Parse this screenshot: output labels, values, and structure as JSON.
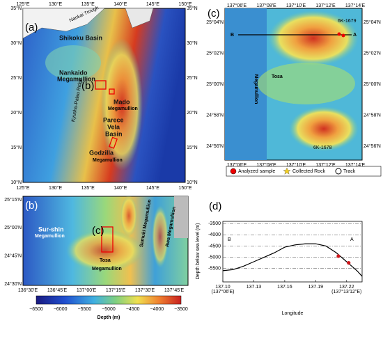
{
  "panel_a": {
    "label": "(a)",
    "lon_ticks": [
      "125°E",
      "130°E",
      "135°E",
      "140°E",
      "145°E",
      "150°E"
    ],
    "lat_ticks": [
      "10°N",
      "15°N",
      "20°N",
      "25°N",
      "30°N",
      "35°N"
    ],
    "features": [
      "Nankai Trough",
      "Shikoku Basin",
      "Nankaido",
      "Megamullion",
      "(b)",
      "Mado",
      "Megamullion",
      "Parece",
      "Vela",
      "Basin",
      "Godzilla",
      "Megamullion",
      "Kyushu-Palau Ridge"
    ]
  },
  "panel_b": {
    "label": "(b)",
    "lon_ticks": [
      "136°30'E",
      "136°45'E",
      "137°00'E",
      "137°15'E",
      "137°30'E",
      "137°45'E"
    ],
    "lat_ticks": [
      "24°30'N",
      "24°45'N",
      "25°00'N",
      "25°15'N"
    ],
    "features": [
      "Sur-shin",
      "Megamullion",
      "(c)",
      "Tosa",
      "Megamullion",
      "Samuki Megamullion",
      "Awa Megamullion"
    ],
    "colorbar": {
      "ticks": [
        "−6500",
        "−6000",
        "−5500",
        "−5000",
        "−4500",
        "−4000",
        "−3500"
      ],
      "label": "Depth (m)"
    }
  },
  "panel_c": {
    "label": "(c)",
    "lon_ticks": [
      "137°06'E",
      "137°08'E",
      "137°10'E",
      "137°12'E",
      "137°14'E"
    ],
    "lat_ticks": [
      "24°56'N",
      "24°58'N",
      "25°00'N",
      "25°02'N",
      "25°04'N"
    ],
    "features": [
      "Tosa",
      "Megamullion",
      "B",
      "A",
      "6K-1679",
      "6K-1678"
    ],
    "legend": [
      "Analyzed sample",
      "Collected Rock",
      "Track"
    ]
  },
  "chart_data": {
    "type": "line",
    "label": "(d)",
    "x": [
      137.1,
      137.11,
      137.12,
      137.13,
      137.14,
      137.15,
      137.16,
      137.17,
      137.18,
      137.19,
      137.2,
      137.21,
      137.22,
      137.23,
      137.235
    ],
    "values": [
      -5600,
      -5550,
      -5400,
      -5200,
      -5000,
      -4800,
      -4550,
      -4450,
      -4400,
      -4400,
      -4500,
      -4800,
      -5200,
      -5600,
      -5850
    ],
    "color": "#000000",
    "samples": {
      "x": [
        137.212,
        137.222
      ],
      "values": [
        -4950,
        -5250
      ],
      "color": "#d0161b"
    },
    "xlim": [
      137.1,
      137.235
    ],
    "ylim": [
      -6100,
      -3400
    ],
    "xticks": [
      {
        "value": 137.1,
        "label": "137.10",
        "sublabel": "(137°06'E)"
      },
      {
        "value": 137.13,
        "label": "137.13"
      },
      {
        "value": 137.16,
        "label": "137.16"
      },
      {
        "value": 137.19,
        "label": "137.19"
      },
      {
        "value": 137.22,
        "label": "137.22",
        "sublabel": "(137°13'12\"E)"
      }
    ],
    "yticks": [
      -3500,
      -4000,
      -4500,
      -5000,
      -5500
    ],
    "grid": true,
    "xlabel": "Longitude",
    "ylabel": "Depth below sea level (m)",
    "annotations": [
      "B",
      "A"
    ]
  }
}
